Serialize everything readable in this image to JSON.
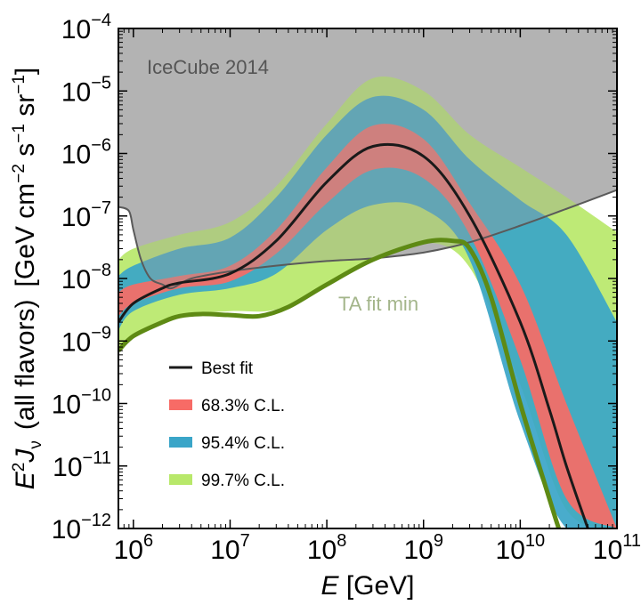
{
  "chart_data": {
    "type": "area",
    "title": "",
    "xlabel": "E [GeV]",
    "ylabel": "E²Jν (all flavors)  [GeV cm⁻² s⁻¹ sr⁻¹]",
    "xscale": "log",
    "yscale": "log",
    "xlim": [
      700000,
      100000000000
    ],
    "ylim": [
      1e-12,
      0.0001
    ],
    "x_ticks": [
      {
        "value": 1000000,
        "base": "10",
        "exp": "6"
      },
      {
        "value": 10000000,
        "base": "10",
        "exp": "7"
      },
      {
        "value": 100000000,
        "base": "10",
        "exp": "8"
      },
      {
        "value": 1000000000,
        "base": "10",
        "exp": "9"
      },
      {
        "value": 10000000000,
        "base": "10",
        "exp": "10"
      },
      {
        "value": 100000000000,
        "base": "10",
        "exp": "11"
      }
    ],
    "y_ticks": [
      {
        "value": 1e-12,
        "base": "10",
        "exp": "−12"
      },
      {
        "value": 1e-11,
        "base": "10",
        "exp": "−11"
      },
      {
        "value": 1e-10,
        "base": "10",
        "exp": "−10"
      },
      {
        "value": 1e-09,
        "base": "10",
        "exp": "−9"
      },
      {
        "value": 1e-08,
        "base": "10",
        "exp": "−8"
      },
      {
        "value": 1e-07,
        "base": "10",
        "exp": "−7"
      },
      {
        "value": 1e-06,
        "base": "10",
        "exp": "−6"
      },
      {
        "value": 1e-05,
        "base": "10",
        "exp": "−5"
      },
      {
        "value": 0.0001,
        "base": "10",
        "exp": "−4"
      }
    ],
    "x_label_parts": {
      "var": "E",
      "unit": " [GeV]"
    },
    "y_label_parts": {
      "main": "E",
      "sq": "2",
      "var": "J",
      "sub": "ν",
      "paren": "(all flavors)",
      "unit_open": "[GeV cm",
      "unit_cm_exp": "−2",
      "unit_s": " s",
      "unit_s_exp": "−1",
      "unit_sr": " sr",
      "unit_sr_exp": "−1",
      "unit_close": "]"
    },
    "icecube_limit": {
      "label": "IceCube 2014",
      "fill_color": "#bfbfbf",
      "line_color": "#5a5a5a",
      "points": [
        [
          700000,
          1.4e-07
        ],
        [
          900000,
          1.2e-07
        ],
        [
          1000000,
          6e-08
        ],
        [
          1200000,
          2e-08
        ],
        [
          1500000,
          1e-08
        ],
        [
          2000000,
          8e-09
        ],
        [
          2500000,
          7e-09
        ],
        [
          4000000,
          1e-08
        ],
        [
          10000000,
          1.3e-08
        ],
        [
          30000000,
          1.6e-08
        ],
        [
          100000000,
          1.9e-08
        ],
        [
          300000000,
          2.1e-08
        ],
        [
          1000000000,
          2.6e-08
        ],
        [
          3000000000,
          3.8e-08
        ],
        [
          10000000000,
          7e-08
        ],
        [
          30000000000,
          1.3e-07
        ],
        [
          100000000000,
          2.6e-07
        ]
      ]
    },
    "series": [
      {
        "name": "99.7% C.L.",
        "color": "#b8e86a",
        "x": [
          700000,
          1000000,
          3000000,
          10000000,
          30000000,
          100000000,
          300000000,
          1000000000,
          3000000000,
          10000000000,
          30000000000,
          100000000000
        ],
        "upper": [
          2e-08,
          3e-08,
          5e-08,
          8e-08,
          3e-07,
          3e-06,
          1.6e-05,
          1e-05,
          2e-06,
          6e-07,
          2e-07,
          5.5e-08
        ],
        "lower": [
          7e-10,
          1.2e-09,
          2.5e-09,
          3e-09,
          3.2e-09,
          8e-09,
          2e-08,
          3.8e-08,
          1.5e-08,
          2e-10,
          2e-12,
          1e-12
        ]
      },
      {
        "name": "95.4% C.L.",
        "color": "#3aa5c8",
        "x": [
          700000,
          1000000,
          3000000,
          10000000,
          30000000,
          100000000,
          300000000,
          1000000000,
          3000000000,
          10000000000,
          30000000000,
          100000000000
        ],
        "upper": [
          1.1e-08,
          1.6e-08,
          3e-08,
          4.5e-08,
          2e-07,
          2e-06,
          8e-06,
          5e-06,
          8e-07,
          1.8e-07,
          5e-08,
          2e-09
        ],
        "lower": [
          1.5e-09,
          3e-09,
          5.5e-09,
          7e-09,
          1.2e-08,
          6e-08,
          1.5e-07,
          1.3e-07,
          2e-08,
          5e-11,
          1e-12,
          1e-12
        ]
      },
      {
        "name": "68.3% C.L.",
        "color": "#f76b66",
        "x": [
          700000,
          1000000,
          3000000,
          10000000,
          30000000,
          100000000,
          300000000,
          1000000000,
          3000000000,
          10000000000,
          30000000000,
          100000000000
        ],
        "upper": [
          6e-09,
          8e-09,
          1.1e-08,
          1.6e-08,
          6e-08,
          6e-07,
          2.8e-06,
          1.7e-06,
          1.6e-07,
          8e-09,
          1e-10,
          1e-12
        ],
        "lower": [
          2.5e-09,
          4e-09,
          7e-09,
          9e-09,
          2.5e-08,
          1.6e-07,
          5.5e-07,
          4e-07,
          5e-08,
          5e-10,
          3e-12,
          1e-12
        ]
      }
    ],
    "best_fit": {
      "name": "Best fit",
      "color": "#1a1a1a",
      "x": [
        700000,
        1000000,
        2000000,
        3000000,
        10000000,
        30000000,
        100000000,
        300000000,
        1000000000,
        3000000000,
        10000000000,
        20000000000,
        30000000000,
        50000000000
      ],
      "y": [
        2e-09,
        4e-09,
        7e-09,
        8.5e-09,
        1.2e-08,
        4e-08,
        3.5e-07,
        1.3e-06,
        9e-07,
        1e-07,
        2e-09,
        8e-11,
        1e-11,
        1e-12
      ]
    },
    "ta_fit_min": {
      "name": "TA fit min",
      "color": "#5e8a14",
      "label_color": "#a3b58a",
      "x": [
        700000,
        1000000,
        2000000,
        3000000,
        5000000,
        10000000,
        20000000,
        40000000,
        100000000,
        300000000,
        1000000000,
        2000000000,
        3000000000,
        5000000000,
        10000000000,
        20000000000,
        25000000000
      ],
      "y": [
        7e-10,
        1.2e-09,
        2e-09,
        2.5e-09,
        2.7e-09,
        2.6e-09,
        2.5e-09,
        3.5e-09,
        8e-09,
        2e-08,
        3.8e-08,
        4e-08,
        3e-08,
        5e-09,
        1e-10,
        3e-12,
        1e-12
      ]
    },
    "legend": {
      "placement": "lower-left",
      "entries": [
        {
          "label": "Best fit",
          "kind": "line",
          "color": "#1a1a1a"
        },
        {
          "label": "68.3% C.L.",
          "kind": "band",
          "color": "#f76b66"
        },
        {
          "label": "95.4% C.L.",
          "kind": "band",
          "color": "#3aa5c8"
        },
        {
          "label": "99.7% C.L.",
          "kind": "band",
          "color": "#b8e86a"
        }
      ]
    }
  }
}
